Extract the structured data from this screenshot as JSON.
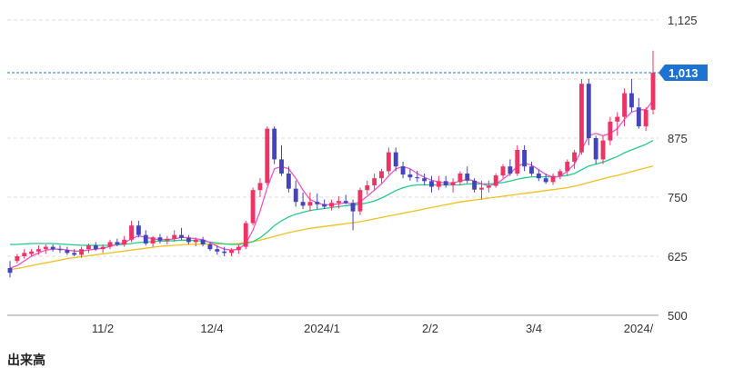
{
  "chart_data": {
    "type": "candlestick",
    "y_ticks": [
      "1,125",
      "875",
      "750",
      "625",
      "500"
    ],
    "y_tick_values": [
      1125,
      875,
      750,
      625,
      500
    ],
    "ylim": [
      500,
      1160
    ],
    "x_ticks": [
      "11/2",
      "12/4",
      "2024/1",
      "2/2",
      "3/4",
      "2024/"
    ],
    "current_price": 1013,
    "current_price_label": "1,013",
    "grid": true,
    "colors": {
      "up": "#ee3366",
      "down": "#4444bb",
      "ma_short": "#ee55cc",
      "ma_mid": "#22cc88",
      "ma_long": "#f0c020",
      "badge": "#1e73d2",
      "grid": "#dddddd",
      "axis": "#999999"
    },
    "candles": [
      [
        600,
        615,
        580,
        590
      ],
      [
        615,
        630,
        610,
        625
      ],
      [
        625,
        640,
        620,
        632
      ],
      [
        630,
        640,
        625,
        635
      ],
      [
        635,
        648,
        628,
        640
      ],
      [
        640,
        650,
        630,
        645
      ],
      [
        645,
        650,
        635,
        640
      ],
      [
        640,
        648,
        632,
        638
      ],
      [
        638,
        645,
        628,
        632
      ],
      [
        632,
        640,
        625,
        628
      ],
      [
        628,
        645,
        622,
        640
      ],
      [
        640,
        652,
        632,
        648
      ],
      [
        648,
        655,
        636,
        640
      ],
      [
        640,
        650,
        632,
        645
      ],
      [
        645,
        660,
        640,
        655
      ],
      [
        655,
        662,
        646,
        650
      ],
      [
        650,
        668,
        645,
        660
      ],
      [
        660,
        700,
        655,
        690
      ],
      [
        690,
        700,
        665,
        670
      ],
      [
        670,
        680,
        648,
        652
      ],
      [
        652,
        668,
        645,
        665
      ],
      [
        665,
        672,
        652,
        658
      ],
      [
        658,
        668,
        650,
        662
      ],
      [
        662,
        680,
        656,
        670
      ],
      [
        670,
        685,
        660,
        664
      ],
      [
        664,
        670,
        650,
        655
      ],
      [
        655,
        665,
        646,
        660
      ],
      [
        660,
        666,
        646,
        650
      ],
      [
        650,
        655,
        636,
        640
      ],
      [
        640,
        648,
        628,
        635
      ],
      [
        635,
        645,
        625,
        632
      ],
      [
        632,
        642,
        625,
        638
      ],
      [
        638,
        650,
        630,
        645
      ],
      [
        645,
        700,
        640,
        695
      ],
      [
        695,
        770,
        690,
        765
      ],
      [
        765,
        790,
        750,
        780
      ],
      [
        780,
        900,
        775,
        895
      ],
      [
        895,
        900,
        820,
        830
      ],
      [
        830,
        860,
        795,
        800
      ],
      [
        800,
        815,
        760,
        768
      ],
      [
        768,
        785,
        730,
        740
      ],
      [
        740,
        760,
        725,
        732
      ],
      [
        732,
        760,
        720,
        740
      ],
      [
        740,
        758,
        725,
        735
      ],
      [
        735,
        745,
        725,
        730
      ],
      [
        730,
        745,
        722,
        738
      ],
      [
        738,
        752,
        726,
        742
      ],
      [
        742,
        755,
        735,
        738
      ],
      [
        738,
        745,
        680,
        720
      ],
      [
        720,
        770,
        712,
        765
      ],
      [
        765,
        785,
        755,
        775
      ],
      [
        775,
        800,
        765,
        790
      ],
      [
        790,
        810,
        780,
        805
      ],
      [
        805,
        855,
        798,
        845
      ],
      [
        845,
        855,
        805,
        815
      ],
      [
        815,
        825,
        790,
        798
      ],
      [
        798,
        810,
        785,
        792
      ],
      [
        792,
        806,
        782,
        790
      ],
      [
        790,
        800,
        775,
        784
      ],
      [
        784,
        795,
        760,
        772
      ],
      [
        772,
        795,
        765,
        784
      ],
      [
        784,
        795,
        770,
        775
      ],
      [
        775,
        790,
        760,
        782
      ],
      [
        782,
        805,
        775,
        800
      ],
      [
        800,
        815,
        780,
        785
      ],
      [
        785,
        790,
        760,
        766
      ],
      [
        766,
        785,
        745,
        770
      ],
      [
        770,
        785,
        760,
        774
      ],
      [
        774,
        800,
        770,
        796
      ],
      [
        796,
        820,
        790,
        815
      ],
      [
        815,
        830,
        795,
        800
      ],
      [
        800,
        860,
        795,
        850
      ],
      [
        850,
        860,
        805,
        815
      ],
      [
        815,
        825,
        795,
        800
      ],
      [
        800,
        808,
        784,
        790
      ],
      [
        790,
        800,
        778,
        782
      ],
      [
        782,
        800,
        776,
        795
      ],
      [
        795,
        810,
        788,
        805
      ],
      [
        805,
        830,
        795,
        825
      ],
      [
        825,
        850,
        810,
        845
      ],
      [
        845,
        1000,
        840,
        990
      ],
      [
        990,
        1000,
        860,
        875
      ],
      [
        875,
        880,
        820,
        830
      ],
      [
        830,
        880,
        820,
        870
      ],
      [
        870,
        920,
        860,
        910
      ],
      [
        910,
        930,
        880,
        920
      ],
      [
        920,
        980,
        900,
        970
      ],
      [
        970,
        1000,
        930,
        940
      ],
      [
        940,
        960,
        895,
        900
      ],
      [
        900,
        940,
        890,
        935
      ],
      [
        935,
        1060,
        925,
        1013
      ]
    ],
    "ma_short": [
      600,
      605,
      615,
      625,
      632,
      638,
      640,
      640,
      638,
      636,
      636,
      638,
      640,
      642,
      646,
      650,
      654,
      662,
      668,
      665,
      662,
      660,
      660,
      662,
      665,
      664,
      662,
      660,
      654,
      646,
      640,
      638,
      640,
      652,
      680,
      720,
      770,
      810,
      815,
      810,
      790,
      765,
      745,
      738,
      734,
      734,
      736,
      738,
      735,
      740,
      752,
      765,
      778,
      795,
      810,
      815,
      810,
      800,
      792,
      786,
      782,
      780,
      780,
      784,
      788,
      784,
      778,
      774,
      778,
      788,
      800,
      815,
      822,
      818,
      808,
      798,
      792,
      794,
      805,
      820,
      850,
      880,
      885,
      880,
      885,
      895,
      915,
      930,
      935,
      935,
      955
    ],
    "ma_mid": [
      650,
      650,
      651,
      652,
      652,
      652,
      652,
      651,
      650,
      649,
      648,
      648,
      648,
      648,
      648,
      649,
      650,
      652,
      654,
      655,
      656,
      657,
      657,
      658,
      659,
      659,
      658,
      657,
      655,
      653,
      651,
      650,
      650,
      652,
      656,
      664,
      676,
      690,
      700,
      708,
      714,
      718,
      722,
      724,
      726,
      728,
      730,
      732,
      733,
      735,
      738,
      742,
      748,
      756,
      764,
      770,
      774,
      776,
      776,
      776,
      776,
      776,
      776,
      776,
      778,
      778,
      778,
      778,
      779,
      781,
      784,
      788,
      791,
      793,
      793,
      793,
      793,
      794,
      796,
      800,
      808,
      816,
      820,
      824,
      830,
      836,
      844,
      850,
      856,
      862,
      870
    ],
    "ma_long": [
      597,
      599,
      602,
      605,
      608,
      611,
      614,
      617,
      620,
      622,
      624,
      626,
      628,
      630,
      632,
      634,
      636,
      638,
      640,
      642,
      644,
      646,
      647,
      648,
      649,
      650,
      650,
      651,
      651,
      651,
      651,
      651,
      652,
      654,
      656,
      659,
      663,
      667,
      671,
      675,
      678,
      681,
      684,
      686,
      688,
      690,
      692,
      694,
      696,
      698,
      701,
      704,
      707,
      710,
      713,
      716,
      719,
      722,
      725,
      728,
      731,
      734,
      737,
      740,
      742,
      744,
      746,
      748,
      750,
      752,
      754,
      756,
      758,
      760,
      762,
      764,
      766,
      768,
      770,
      773,
      777,
      781,
      785,
      789,
      793,
      796,
      800,
      804,
      808,
      812,
      816
    ]
  },
  "footer": {
    "label": "出来高"
  }
}
